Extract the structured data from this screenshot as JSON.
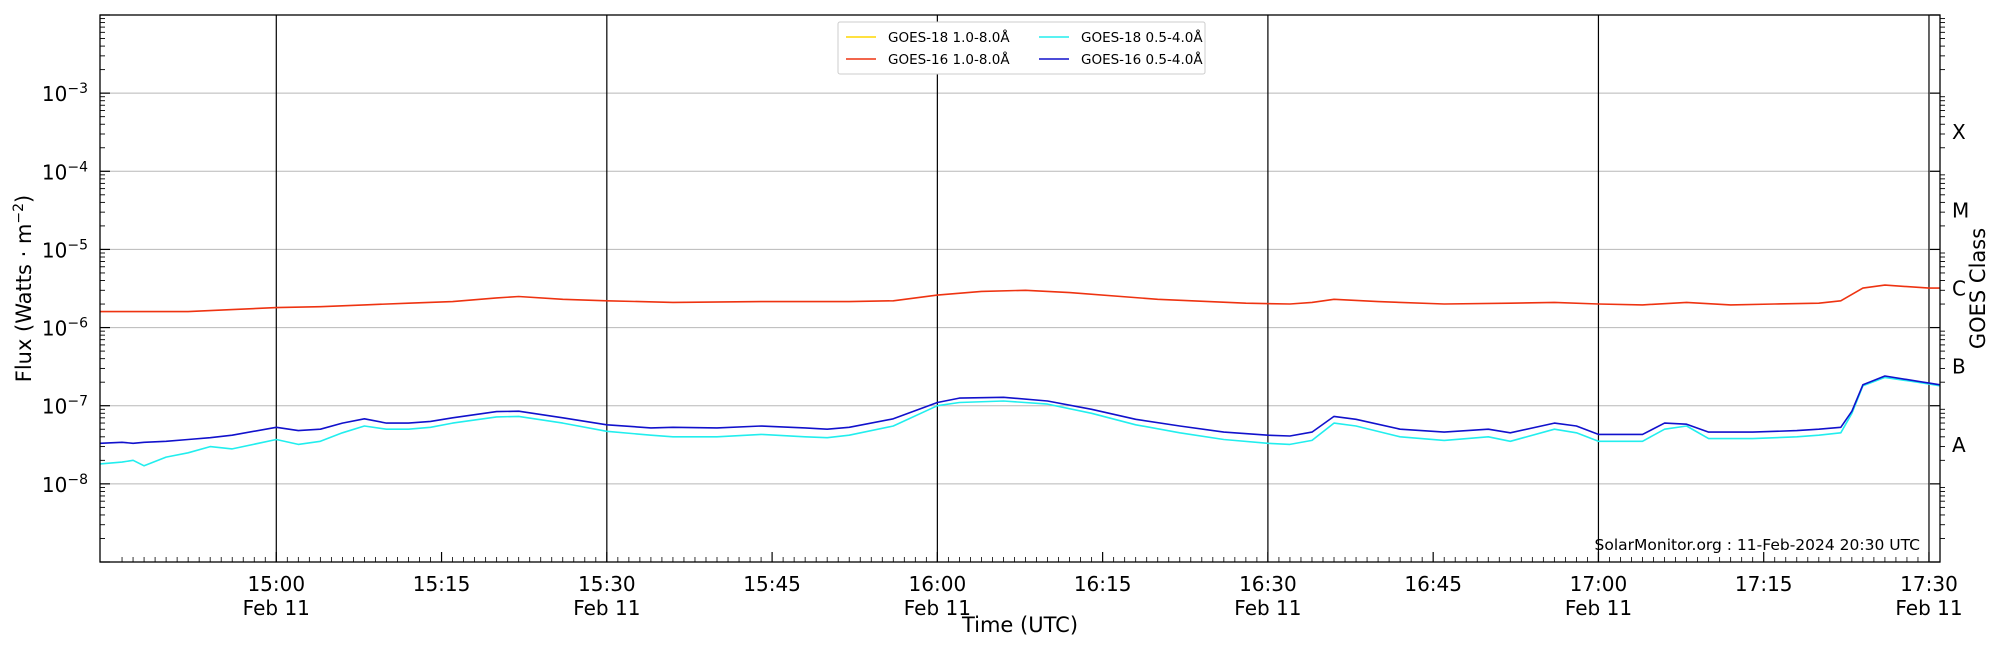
{
  "chart_data": {
    "type": "line",
    "xlabel": "Time (UTC)",
    "ylabel_main": "Flux (Watts · m",
    "ylabel_sup": "−2",
    "ylabel_close": ")",
    "y2label": "GOES Class",
    "y_scale": "log",
    "xlim": [
      "14:44",
      "17:31"
    ],
    "ylim": [
      1e-09,
      0.01
    ],
    "grid": "horizontal at each y decade",
    "legend_position": "top-center",
    "watermark": "SolarMonitor.org : 11-Feb-2024 20:30 UTC",
    "x_ticks": [
      {
        "time": "15:00",
        "line1": "15:00",
        "line2": "Feb 11",
        "vline": true
      },
      {
        "time": "15:15",
        "line1": "15:15",
        "line2": "",
        "vline": false
      },
      {
        "time": "15:30",
        "line1": "15:30",
        "line2": "Feb 11",
        "vline": true
      },
      {
        "time": "15:45",
        "line1": "15:45",
        "line2": "",
        "vline": false
      },
      {
        "time": "16:00",
        "line1": "16:00",
        "line2": "Feb 11",
        "vline": true
      },
      {
        "time": "16:15",
        "line1": "16:15",
        "line2": "",
        "vline": false
      },
      {
        "time": "16:30",
        "line1": "16:30",
        "line2": "Feb 11",
        "vline": true
      },
      {
        "time": "16:45",
        "line1": "16:45",
        "line2": "",
        "vline": false
      },
      {
        "time": "17:00",
        "line1": "17:00",
        "line2": "Feb 11",
        "vline": true
      },
      {
        "time": "17:15",
        "line1": "17:15",
        "line2": "",
        "vline": false
      },
      {
        "time": "17:30",
        "line1": "17:30",
        "line2": "Feb 11",
        "vline": true
      }
    ],
    "y_ticks": [
      {
        "exp": -8,
        "label": "10",
        "sup": "−8"
      },
      {
        "exp": -7,
        "label": "10",
        "sup": "−7"
      },
      {
        "exp": -6,
        "label": "10",
        "sup": "−6"
      },
      {
        "exp": -5,
        "label": "10",
        "sup": "−5"
      },
      {
        "exp": -4,
        "label": "10",
        "sup": "−4"
      },
      {
        "exp": -3,
        "label": "10",
        "sup": "−3"
      }
    ],
    "goes_classes": [
      {
        "label": "A",
        "exp": -7.5
      },
      {
        "label": "B",
        "exp": -6.5
      },
      {
        "label": "C",
        "exp": -5.5
      },
      {
        "label": "M",
        "exp": -4.5
      },
      {
        "label": "X",
        "exp": -3.5
      }
    ],
    "series": [
      {
        "name": "GOES-18 1.0-8.0Å",
        "color": "#ffd700",
        "x": [],
        "y": []
      },
      {
        "name": "GOES-16 1.0-8.0Å",
        "color": "#ee3311",
        "x": [
          "14:44",
          "14:52",
          "14:56",
          "15:00",
          "15:04",
          "15:08",
          "15:12",
          "15:16",
          "15:20",
          "15:22",
          "15:26",
          "15:30",
          "15:36",
          "15:44",
          "15:52",
          "15:56",
          "16:00",
          "16:04",
          "16:08",
          "16:12",
          "16:20",
          "16:28",
          "16:32",
          "16:34",
          "16:36",
          "16:40",
          "16:46",
          "16:52",
          "16:56",
          "17:00",
          "17:04",
          "17:08",
          "17:12",
          "17:16",
          "17:20",
          "17:22",
          "17:24",
          "17:26",
          "17:30",
          "17:31"
        ],
        "y": [
          1.6e-06,
          1.6e-06,
          1.7e-06,
          1.8e-06,
          1.85e-06,
          1.95e-06,
          2.05e-06,
          2.15e-06,
          2.4e-06,
          2.5e-06,
          2.3e-06,
          2.2e-06,
          2.1e-06,
          2.15e-06,
          2.15e-06,
          2.2e-06,
          2.6e-06,
          2.9e-06,
          3e-06,
          2.8e-06,
          2.3e-06,
          2.05e-06,
          2e-06,
          2.1e-06,
          2.3e-06,
          2.15e-06,
          2e-06,
          2.05e-06,
          2.1e-06,
          2e-06,
          1.95e-06,
          2.1e-06,
          1.95e-06,
          2e-06,
          2.05e-06,
          2.2e-06,
          3.2e-06,
          3.5e-06,
          3.2e-06,
          3.2e-06
        ]
      },
      {
        "name": "GOES-18 0.5-4.0Å",
        "color": "#22eeee",
        "x": [
          "14:44",
          "14:46",
          "14:47",
          "14:48",
          "14:50",
          "14:52",
          "14:54",
          "14:56",
          "15:00",
          "15:02",
          "15:04",
          "15:06",
          "15:08",
          "15:10",
          "15:12",
          "15:14",
          "15:16",
          "15:20",
          "15:22",
          "15:26",
          "15:30",
          "15:34",
          "15:36",
          "15:40",
          "15:44",
          "15:48",
          "15:50",
          "15:52",
          "15:56",
          "16:00",
          "16:02",
          "16:06",
          "16:10",
          "16:14",
          "16:18",
          "16:22",
          "16:26",
          "16:30",
          "16:32",
          "16:34",
          "16:36",
          "16:38",
          "16:42",
          "16:46",
          "16:50",
          "16:52",
          "16:56",
          "16:58",
          "17:00",
          "17:04",
          "17:06",
          "17:08",
          "17:10",
          "17:14",
          "17:18",
          "17:20",
          "17:22",
          "17:23",
          "17:24",
          "17:26",
          "17:30",
          "17:31"
        ],
        "y": [
          1.8e-08,
          1.9e-08,
          2e-08,
          1.7e-08,
          2.2e-08,
          2.5e-08,
          3e-08,
          2.8e-08,
          3.7e-08,
          3.2e-08,
          3.5e-08,
          4.5e-08,
          5.5e-08,
          5e-08,
          5e-08,
          5.3e-08,
          6e-08,
          7.2e-08,
          7.3e-08,
          6e-08,
          4.7e-08,
          4.2e-08,
          4e-08,
          4e-08,
          4.3e-08,
          4e-08,
          3.9e-08,
          4.2e-08,
          5.5e-08,
          1e-07,
          1.1e-07,
          1.15e-07,
          1.05e-07,
          8e-08,
          5.7e-08,
          4.5e-08,
          3.7e-08,
          3.3e-08,
          3.2e-08,
          3.6e-08,
          6e-08,
          5.5e-08,
          4e-08,
          3.6e-08,
          4e-08,
          3.5e-08,
          5e-08,
          4.5e-08,
          3.5e-08,
          3.5e-08,
          5e-08,
          5.5e-08,
          3.8e-08,
          3.8e-08,
          4e-08,
          4.2e-08,
          4.5e-08,
          8e-08,
          1.8e-07,
          2.3e-07,
          1.9e-07,
          1.8e-07
        ]
      },
      {
        "name": "GOES-16 0.5-4.0Å",
        "color": "#1111cc",
        "x": [
          "14:44",
          "14:46",
          "14:47",
          "14:48",
          "14:50",
          "14:52",
          "14:54",
          "14:56",
          "15:00",
          "15:02",
          "15:04",
          "15:06",
          "15:08",
          "15:10",
          "15:12",
          "15:14",
          "15:16",
          "15:20",
          "15:22",
          "15:26",
          "15:30",
          "15:34",
          "15:36",
          "15:40",
          "15:44",
          "15:48",
          "15:50",
          "15:52",
          "15:56",
          "16:00",
          "16:02",
          "16:06",
          "16:10",
          "16:14",
          "16:18",
          "16:22",
          "16:26",
          "16:30",
          "16:32",
          "16:34",
          "16:36",
          "16:38",
          "16:42",
          "16:46",
          "16:50",
          "16:52",
          "16:56",
          "16:58",
          "17:00",
          "17:04",
          "17:06",
          "17:08",
          "17:10",
          "17:14",
          "17:18",
          "17:20",
          "17:22",
          "17:23",
          "17:24",
          "17:26",
          "17:30",
          "17:31"
        ],
        "y": [
          3.3e-08,
          3.4e-08,
          3.3e-08,
          3.4e-08,
          3.5e-08,
          3.7e-08,
          3.9e-08,
          4.2e-08,
          5.3e-08,
          4.8e-08,
          5e-08,
          6e-08,
          6.8e-08,
          6e-08,
          6e-08,
          6.3e-08,
          7e-08,
          8.4e-08,
          8.5e-08,
          7e-08,
          5.7e-08,
          5.2e-08,
          5.3e-08,
          5.2e-08,
          5.5e-08,
          5.2e-08,
          5e-08,
          5.3e-08,
          6.8e-08,
          1.1e-07,
          1.25e-07,
          1.28e-07,
          1.15e-07,
          9e-08,
          6.7e-08,
          5.5e-08,
          4.6e-08,
          4.2e-08,
          4.1e-08,
          4.6e-08,
          7.3e-08,
          6.7e-08,
          5e-08,
          4.6e-08,
          5e-08,
          4.5e-08,
          6e-08,
          5.5e-08,
          4.3e-08,
          4.3e-08,
          6e-08,
          5.8e-08,
          4.6e-08,
          4.6e-08,
          4.8e-08,
          5e-08,
          5.3e-08,
          8.5e-08,
          1.85e-07,
          2.4e-07,
          1.95e-07,
          1.85e-07
        ]
      }
    ]
  }
}
